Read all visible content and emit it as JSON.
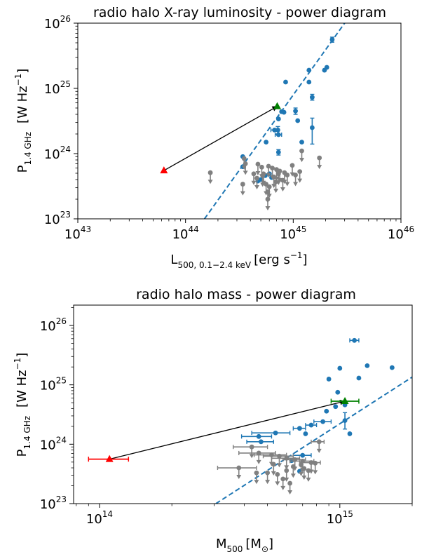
{
  "chart_data": [
    {
      "type": "scatter",
      "title": "radio halo X-ray luminosity - power diagram",
      "xlabel": "L500, 0.1−2.4 keV [erg s⁻¹]",
      "ylabel": "P1.4 GHz [W Hz⁻¹]",
      "xlabel_parts": {
        "main": "L",
        "sub": "500, 0.1−2.4 keV",
        "unit": "[erg s",
        "unit_sup": "−1",
        "close": "]"
      },
      "ylabel_parts": {
        "main": "P",
        "sub": "1.4 GHz",
        "unit": "[W Hz",
        "unit_sup": "−1",
        "close": "]"
      },
      "xscale": "log",
      "yscale": "log",
      "xlim": [
        1e+43,
        1e+46
      ],
      "ylim": [
        1e+23,
        1e+26
      ],
      "xticks": [
        {
          "base": "10",
          "exp": "43"
        },
        {
          "base": "10",
          "exp": "44"
        },
        {
          "base": "10",
          "exp": "45"
        },
        {
          "base": "10",
          "exp": "46"
        }
      ],
      "yticks": [
        {
          "base": "10",
          "exp": "23"
        },
        {
          "base": "10",
          "exp": "24"
        },
        {
          "base": "10",
          "exp": "25"
        },
        {
          "base": "10",
          "exp": "26"
        }
      ],
      "fit_line": {
        "color": "#1f77b4",
        "points": [
          [
            1.5e+44,
            1e+23
          ],
          [
            3e+45,
            1e+26
          ]
        ]
      },
      "arrow": {
        "from": [
          6.3e+43,
          5.5e+23
        ],
        "to": [
          7.1e+44,
          5.3e+24
        ],
        "color": "#000000"
      },
      "highlight_from": {
        "x": 6.3e+43,
        "y": 5.5e+23,
        "color": "#ff0000",
        "marker": "triangle"
      },
      "highlight_to": {
        "x": 7.1e+44,
        "y": 5.3e+24,
        "color": "#008000",
        "marker": "triangle"
      },
      "series": [
        {
          "color": "#1f77b4",
          "points": [
            {
              "x": 2.3e+45,
              "y": 5.6e+25,
              "ylo": 5.1e+25,
              "yhi": 6.1e+25
            },
            {
              "x": 2.05e+45,
              "y": 2.1e+25
            },
            {
              "x": 1.95e+45,
              "y": 1.9e+25
            },
            {
              "x": 1.4e+45,
              "y": 1.9e+25
            },
            {
              "x": 1.4e+45,
              "y": 1.25e+25
            },
            {
              "x": 8.5e+44,
              "y": 1.25e+25
            },
            {
              "x": 1.5e+45,
              "y": 7.3e+24,
              "ylo": 6.6e+24,
              "yhi": 8.1e+24
            },
            {
              "x": 1.05e+45,
              "y": 4.5e+24,
              "ylo": 4e+24,
              "yhi": 5e+24
            },
            {
              "x": 8.2e+44,
              "y": 4.3e+24
            },
            {
              "x": 7.8e+44,
              "y": 4.4e+24
            },
            {
              "x": 1.1e+45,
              "y": 3.2e+24
            },
            {
              "x": 7.3e+44,
              "y": 3.4e+24
            },
            {
              "x": 1.5e+45,
              "y": 2.5e+24,
              "ylo": 1.4e+24,
              "yhi": 3.5e+24
            },
            {
              "x": 6.7e+44,
              "y": 2.3e+24,
              "xlo": 6.2e+44,
              "xhi": 7.2e+44
            },
            {
              "x": 7.2e+44,
              "y": 2.3e+24,
              "ylo": 2e+24,
              "yhi": 2.6e+24
            },
            {
              "x": 7.3e+44,
              "y": 1.95e+24,
              "xlo": 6.8e+44,
              "xhi": 7.8e+44
            },
            {
              "x": 5.6e+44,
              "y": 1.5e+24
            },
            {
              "x": 1.2e+45,
              "y": 1.5e+24
            },
            {
              "x": 7.3e+44,
              "y": 1.05e+24,
              "ylo": 9.5e+23,
              "yhi": 1.15e+24
            },
            {
              "x": 3.4e+44,
              "y": 9e+23
            },
            {
              "x": 3.4e+44,
              "y": 6.3e+23
            },
            {
              "x": 6e+44,
              "y": 4.9e+23
            },
            {
              "x": 6.3e+44,
              "y": 4.3e+23
            },
            {
              "x": 5.5e+44,
              "y": 4.6e+23
            },
            {
              "x": 5e+44,
              "y": 4e+23
            },
            {
              "x": 4.7e+44,
              "y": 3.8e+23
            }
          ]
        },
        {
          "color": "#808080",
          "upper_limits": true,
          "points": [
            {
              "x": 1.7e+44,
              "y": 5.1e+23
            },
            {
              "x": 3.5e+44,
              "y": 8.4e+23
            },
            {
              "x": 3.6e+44,
              "y": 7e+23
            },
            {
              "x": 4.7e+44,
              "y": 6.9e+23
            },
            {
              "x": 5.1e+44,
              "y": 6.2e+23
            },
            {
              "x": 5.9e+44,
              "y": 6.4e+23
            },
            {
              "x": 6.4e+44,
              "y": 6e+23
            },
            {
              "x": 7e+44,
              "y": 5.7e+23
            },
            {
              "x": 7.5e+44,
              "y": 5.4e+23
            },
            {
              "x": 8.3e+44,
              "y": 5.1e+23
            },
            {
              "x": 8.8e+44,
              "y": 4.7e+23
            },
            {
              "x": 9.8e+44,
              "y": 6.6e+23
            },
            {
              "x": 1.05e+45,
              "y": 4.7e+23
            },
            {
              "x": 1.15e+45,
              "y": 5.3e+23
            },
            {
              "x": 1.2e+45,
              "y": 1.1e+24
            },
            {
              "x": 1.75e+45,
              "y": 8.6e+23
            },
            {
              "x": 4.3e+44,
              "y": 4.9e+23
            },
            {
              "x": 4.6e+44,
              "y": 4.2e+23
            },
            {
              "x": 5.2e+44,
              "y": 4.6e+23
            },
            {
              "x": 5.6e+44,
              "y": 3.4e+23
            },
            {
              "x": 6e+44,
              "y": 3.1e+23
            },
            {
              "x": 6.6e+44,
              "y": 4.4e+23
            },
            {
              "x": 6.9e+44,
              "y": 3.7e+23
            },
            {
              "x": 3.4e+44,
              "y": 3.4e+23
            },
            {
              "x": 5.8e+44,
              "y": 2.6e+23
            },
            {
              "x": 5.8e+44,
              "y": 2e+23
            },
            {
              "x": 5.3e+44,
              "y": 4.9e+23
            },
            {
              "x": 7.3e+44,
              "y": 4.9e+23
            },
            {
              "x": 8e+44,
              "y": 3.9e+23
            }
          ]
        }
      ]
    },
    {
      "type": "scatter",
      "title": "radio halo mass - power diagram",
      "xlabel": "M500 [M⊙]",
      "ylabel": "P1.4 GHz [W Hz⁻¹]",
      "xlabel_parts": {
        "main": "M",
        "sub": "500",
        "unit": "[M",
        "unit_sub": "⊙",
        "close": "]"
      },
      "ylabel_parts": {
        "main": "P",
        "sub": "1.4 GHz",
        "unit": "[W Hz",
        "unit_sup": "−1",
        "close": "]"
      },
      "xscale": "log",
      "yscale": "log",
      "xlim": [
        78000000000000.0,
        2000000000000000.0
      ],
      "ylim": [
        1e+23,
        2.2e+26
      ],
      "xticks": [
        {
          "value": 100000000000000.0,
          "base": "10",
          "exp": "14"
        },
        {
          "value": 1000000000000000.0,
          "base": "10",
          "exp": "15"
        }
      ],
      "yticks": [
        {
          "base": "10",
          "exp": "23"
        },
        {
          "base": "10",
          "exp": "24"
        },
        {
          "base": "10",
          "exp": "25"
        },
        {
          "base": "10",
          "exp": "26"
        }
      ],
      "fit_line": {
        "color": "#1f77b4",
        "points": [
          [
            305000000000000.0,
            1e+23
          ],
          [
            2000000000000000.0,
            1.35e+25
          ]
        ]
      },
      "arrow": {
        "from": [
          110000000000000.0,
          5.6e+23
        ],
        "to": [
          1050000000000000.0,
          5.3e+24
        ],
        "color": "#000000"
      },
      "highlight_from": {
        "x": 110000000000000.0,
        "y": 5.6e+23,
        "color": "#ff0000",
        "marker": "triangle",
        "xlo": 90000000000000.0,
        "xhi": 132000000000000.0
      },
      "highlight_to": {
        "x": 1050000000000000.0,
        "y": 5.3e+24,
        "color": "#008000",
        "marker": "triangle",
        "xlo": 920000000000000.0,
        "xhi": 1200000000000000.0
      },
      "series": [
        {
          "color": "#1f77b4",
          "points": [
            {
              "x": 1150000000000000.0,
              "y": 5.6e+25,
              "xlo": 1100000000000000.0,
              "xhi": 1200000000000000.0
            },
            {
              "x": 1300000000000000.0,
              "y": 2.1e+25
            },
            {
              "x": 1650000000000000.0,
              "y": 1.95e+25
            },
            {
              "x": 1000000000000000.0,
              "y": 1.9e+25
            },
            {
              "x": 900000000000000.0,
              "y": 1.25e+25
            },
            {
              "x": 1200000000000000.0,
              "y": 1.3e+25
            },
            {
              "x": 980000000000000.0,
              "y": 7.5e+24
            },
            {
              "x": 1050000000000000.0,
              "y": 4.6e+24
            },
            {
              "x": 960000000000000.0,
              "y": 4.3e+24
            },
            {
              "x": 880000000000000.0,
              "y": 3.6e+24
            },
            {
              "x": 850000000000000.0,
              "y": 2.4e+24,
              "xlo": 780000000000000.0,
              "xhi": 920000000000000.0
            },
            {
              "x": 1050000000000000.0,
              "y": 2.5e+24,
              "ylo": 1.8e+24,
              "yhi": 3.4e+24
            },
            {
              "x": 760000000000000.0,
              "y": 2.1e+24,
              "xlo": 720000000000000.0,
              "xhi": 800000000000000.0
            },
            {
              "x": 680000000000000.0,
              "y": 1.85e+24,
              "xlo": 640000000000000.0,
              "xhi": 720000000000000.0
            },
            {
              "x": 720000000000000.0,
              "y": 1.5e+24
            },
            {
              "x": 1100000000000000.0,
              "y": 1.5e+24
            },
            {
              "x": 540000000000000.0,
              "y": 1.55e+24,
              "xlo": 430000000000000.0,
              "xhi": 620000000000000.0
            },
            {
              "x": 460000000000000.0,
              "y": 1.35e+24,
              "xlo": 390000000000000.0,
              "xhi": 520000000000000.0
            },
            {
              "x": 470000000000000.0,
              "y": 1.1e+24,
              "xlo": 410000000000000.0,
              "xhi": 530000000000000.0
            },
            {
              "x": 700000000000000.0,
              "y": 6.5e+23,
              "xlo": 640000000000000.0,
              "xhi": 760000000000000.0
            },
            {
              "x": 630000000000000.0,
              "y": 5.3e+23
            },
            {
              "x": 680000000000000.0,
              "y": 3.5e+23
            }
          ]
        },
        {
          "color": "#808080",
          "upper_limits": true,
          "points": [
            {
              "x": 380000000000000.0,
              "y": 4e+23,
              "xlo": 310000000000000.0,
              "xhi": 450000000000000.0
            },
            {
              "x": 430000000000000.0,
              "y": 9e+23,
              "xlo": 360000000000000.0,
              "xhi": 500000000000000.0
            },
            {
              "x": 460000000000000.0,
              "y": 7.1e+23,
              "xlo": 380000000000000.0,
              "xhi": 540000000000000.0
            },
            {
              "x": 520000000000000.0,
              "y": 6.6e+23,
              "xlo": 440000000000000.0,
              "xhi": 600000000000000.0
            },
            {
              "x": 560000000000000.0,
              "y": 6.3e+23,
              "xlo": 480000000000000.0,
              "xhi": 640000000000000.0
            },
            {
              "x": 600000000000000.0,
              "y": 5.8e+23,
              "xlo": 520000000000000.0,
              "xhi": 680000000000000.0
            },
            {
              "x": 650000000000000.0,
              "y": 5.5e+23,
              "xlo": 580000000000000.0,
              "xhi": 720000000000000.0
            },
            {
              "x": 700000000000000.0,
              "y": 5.2e+23,
              "xlo": 620000000000000.0,
              "xhi": 780000000000000.0
            },
            {
              "x": 760000000000000.0,
              "y": 4.9e+23,
              "xlo": 680000000000000.0,
              "xhi": 830000000000000.0
            },
            {
              "x": 820000000000000.0,
              "y": 1.1e+24,
              "xlo": 760000000000000.0,
              "xhi": 860000000000000.0
            },
            {
              "x": 450000000000000.0,
              "y": 3.3e+23
            },
            {
              "x": 500000000000000.0,
              "y": 3.3e+23
            },
            {
              "x": 550000000000000.0,
              "y": 3.1e+23
            },
            {
              "x": 600000000000000.0,
              "y": 3.6e+23
            },
            {
              "x": 640000000000000.0,
              "y": 4.2e+23
            },
            {
              "x": 690000000000000.0,
              "y": 4.5e+23
            },
            {
              "x": 740000000000000.0,
              "y": 3.6e+23
            },
            {
              "x": 790000000000000.0,
              "y": 4.8e+23
            },
            {
              "x": 580000000000000.0,
              "y": 2.6e+23
            },
            {
              "x": 620000000000000.0,
              "y": 2.2e+23
            },
            {
              "x": 530000000000000.0,
              "y": 4.6e+23
            },
            {
              "x": 710000000000000.0,
              "y": 3.9e+23
            }
          ]
        }
      ]
    }
  ]
}
